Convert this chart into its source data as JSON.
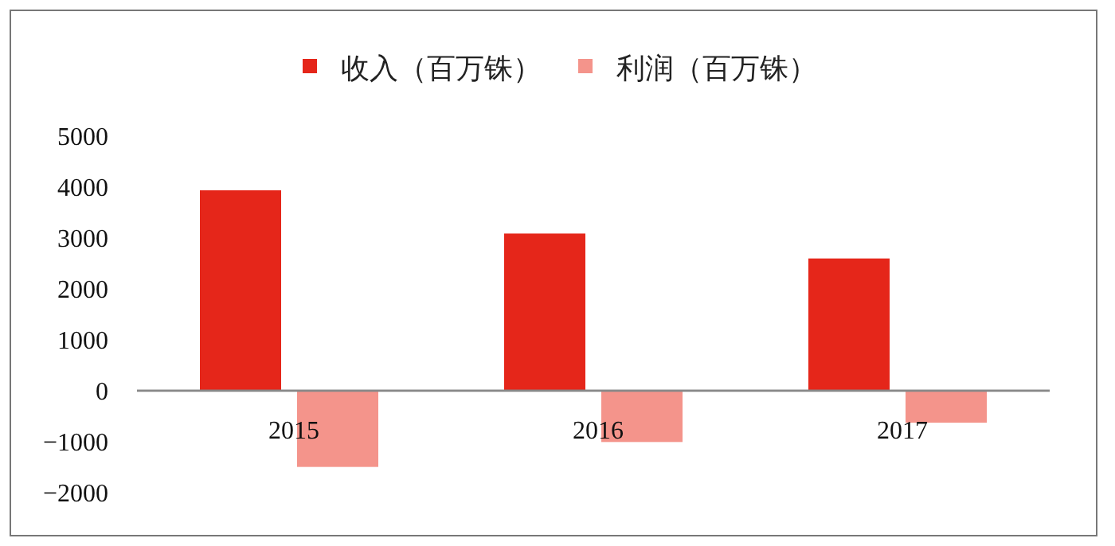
{
  "chart_data": {
    "type": "bar",
    "categories": [
      "2015",
      "2016",
      "2017"
    ],
    "series": [
      {
        "name": "收入（百万铢）",
        "color": "#e5261a",
        "values": [
          3940,
          3090,
          2600
        ]
      },
      {
        "name": "利润（百万铢）",
        "color": "#f4948b",
        "values": [
          -1500,
          -1010,
          -630
        ]
      }
    ],
    "ylim": [
      -2000,
      5000
    ],
    "yticks": [
      -2000,
      -1000,
      0,
      1000,
      2000,
      3000,
      4000,
      5000
    ],
    "grid": false,
    "legend": "top"
  }
}
